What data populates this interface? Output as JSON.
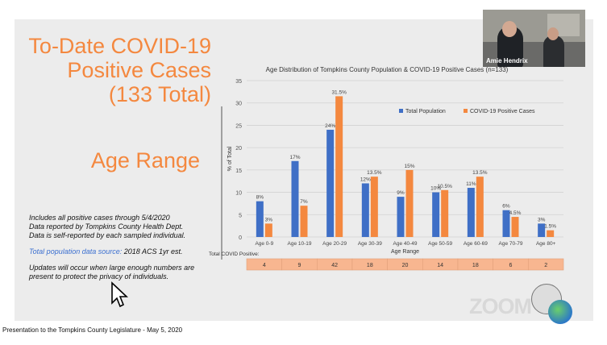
{
  "slide": {
    "title_lines": [
      "To-Date COVID-19",
      "Positive Cases",
      "(133 Total)"
    ],
    "subtitle": "Age Range",
    "notes": {
      "line1": "Includes all positive cases through 5/4/2020",
      "line2": "Data reported by Tompkins County Health Dept.",
      "line3": "Data is self-reported by each sampled individual.",
      "source_label": "Total population data source:",
      "source_value": "2018 ACS 1yr est.",
      "update_line1": "Updates will occur when large enough numbers are",
      "update_line2": "present to protect the privacy of individuals."
    }
  },
  "video": {
    "participant_name": "Amie Hendrix"
  },
  "footer": {
    "text": "Presentation to the Tompkins County Legislature - May 5, 2020"
  },
  "zoom": {
    "logo_text": "ZOOM"
  },
  "colors": {
    "accent": "#f4883f",
    "total_population": "#3f6fc6",
    "covid_cases": "#f4883f",
    "table_fill": "#f8b690"
  },
  "chart_data": {
    "type": "bar",
    "title": "Age Distribution of Tompkins County Population & COVID-19 Positive Cases (n=133)",
    "xlabel": "Age Range",
    "ylabel": "% of Total",
    "ylim": [
      0,
      35
    ],
    "yticks": [
      "0",
      "5",
      "10",
      "15",
      "20",
      "25",
      "30",
      "35"
    ],
    "categories": [
      "Age 0-9",
      "Age 10-19",
      "Age 20-29",
      "Age 30-39",
      "Age 40-49",
      "Age 50-59",
      "Age 60-69",
      "Age 70-79",
      "Age 80+"
    ],
    "series": [
      {
        "name": "Total Population",
        "values": [
          8,
          17,
          24,
          12,
          9,
          10,
          11,
          6,
          3
        ],
        "labels": [
          "8%",
          "17%",
          "24%",
          "12%",
          "9%",
          "10%",
          "11%",
          "6%",
          "3%"
        ]
      },
      {
        "name": "COVID-19 Positive Cases",
        "values": [
          3,
          7,
          31.5,
          13.5,
          15,
          10.5,
          13.5,
          4.5,
          1.5
        ],
        "labels": [
          "3%",
          "7%",
          "31.5%",
          "13.5%",
          "15%",
          "10.5%",
          "13.5%",
          "4.5%",
          "1.5%"
        ]
      }
    ],
    "legend": "top-right",
    "grid": true,
    "table": {
      "label": "Total COVID Positive:",
      "values": [
        "4",
        "9",
        "42",
        "18",
        "20",
        "14",
        "18",
        "6",
        "2"
      ]
    }
  }
}
